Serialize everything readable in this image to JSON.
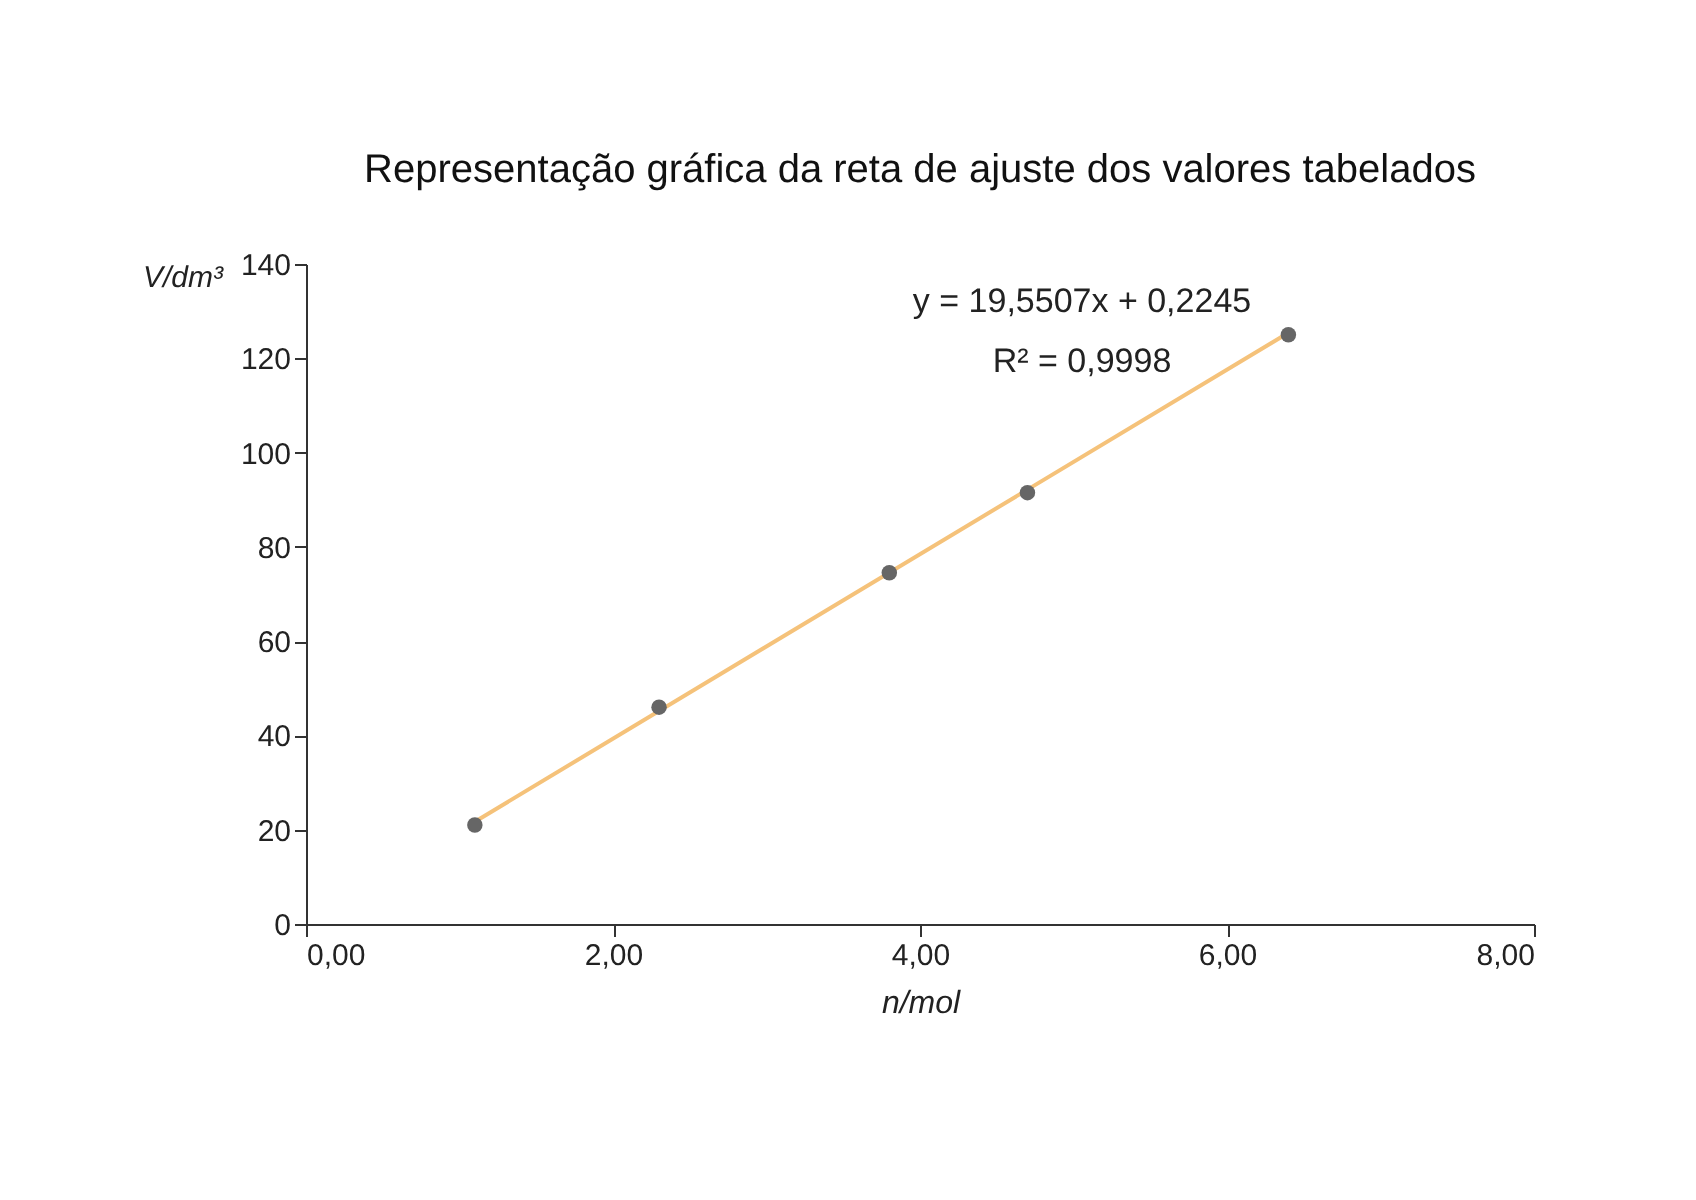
{
  "chart_data": {
    "type": "scatter",
    "title": "Representação gráfica da reta de ajuste dos valores tabelados",
    "xlabel": "n/mol",
    "ylabel": "V/dm³",
    "x": [
      1.1,
      2.3,
      3.8,
      4.7,
      6.4
    ],
    "series": [
      {
        "color": "#666666",
        "marker": "circle",
        "values": [
          21,
          46,
          74.5,
          91.5,
          125
        ]
      },
      {
        "type": "line",
        "marker": "none",
        "color": "#f5c27a",
        "x": [
          1.1,
          6.4
        ],
        "values": [
          21.7,
          125.4
        ]
      }
    ],
    "xlim": [
      0,
      8
    ],
    "ylim": [
      0,
      140
    ],
    "xticks": [
      {
        "value": 0,
        "label": "0,00"
      },
      {
        "value": 2,
        "label": "2,00"
      },
      {
        "value": 4,
        "label": "4,00"
      },
      {
        "value": 6,
        "label": "6,00"
      },
      {
        "value": 8,
        "label": "8,00"
      }
    ],
    "yticks": [
      0,
      20,
      40,
      60,
      80,
      100,
      120,
      140
    ],
    "annotations": [
      "y = 19,5507x + 0,2245",
      "R² = 0,9998"
    ],
    "grid": false
  }
}
